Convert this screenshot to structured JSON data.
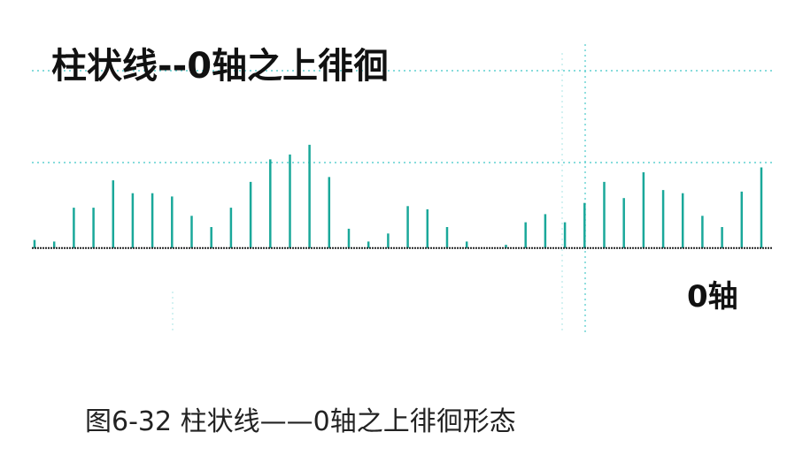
{
  "caption": "图6-32 柱状线——0轴之上徘徊形态",
  "chart_data": {
    "type": "bar",
    "title": "柱状线--0轴之上徘徊",
    "zero_axis_label": "0轴",
    "bar_color": "#1aa89a",
    "grid_color": "#5fd0d0",
    "axis_color": "#222222",
    "grid": true,
    "values": [
      5,
      4,
      25,
      25,
      42,
      34,
      34,
      32,
      20,
      13,
      25,
      41,
      55,
      58,
      64,
      44,
      12,
      4,
      9,
      26,
      24,
      13,
      4,
      0,
      2,
      16,
      21,
      16,
      28,
      41,
      31,
      47,
      36,
      34,
      20,
      13,
      35,
      50
    ],
    "ylim": [
      -50,
      110
    ]
  }
}
